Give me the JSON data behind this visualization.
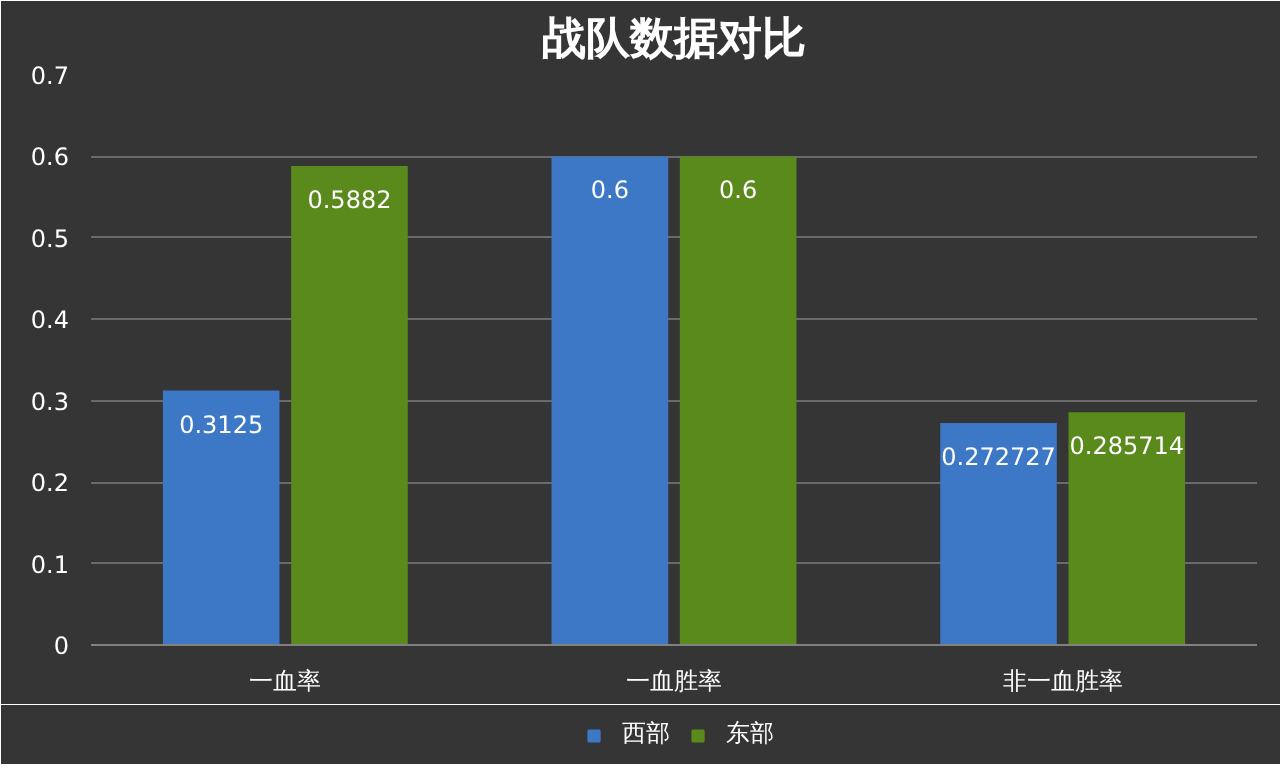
{
  "chart_data": {
    "type": "bar",
    "title": "战队数据对比",
    "categories": [
      "一血率",
      "一血胜率",
      "非一血胜率"
    ],
    "series": [
      {
        "name": "西部",
        "color": "#3d78c6",
        "values": [
          0.3125,
          0.6,
          0.272727
        ]
      },
      {
        "name": "东部",
        "color": "#5b8a1c",
        "values": [
          0.5882,
          0.6,
          0.285714
        ]
      }
    ],
    "ylim": [
      0,
      0.7
    ],
    "yticks": [
      0,
      0.1,
      0.2,
      0.3,
      0.4,
      0.5,
      0.6,
      0.7
    ],
    "grid": "y",
    "legend": "bottom",
    "data_labels": true
  }
}
